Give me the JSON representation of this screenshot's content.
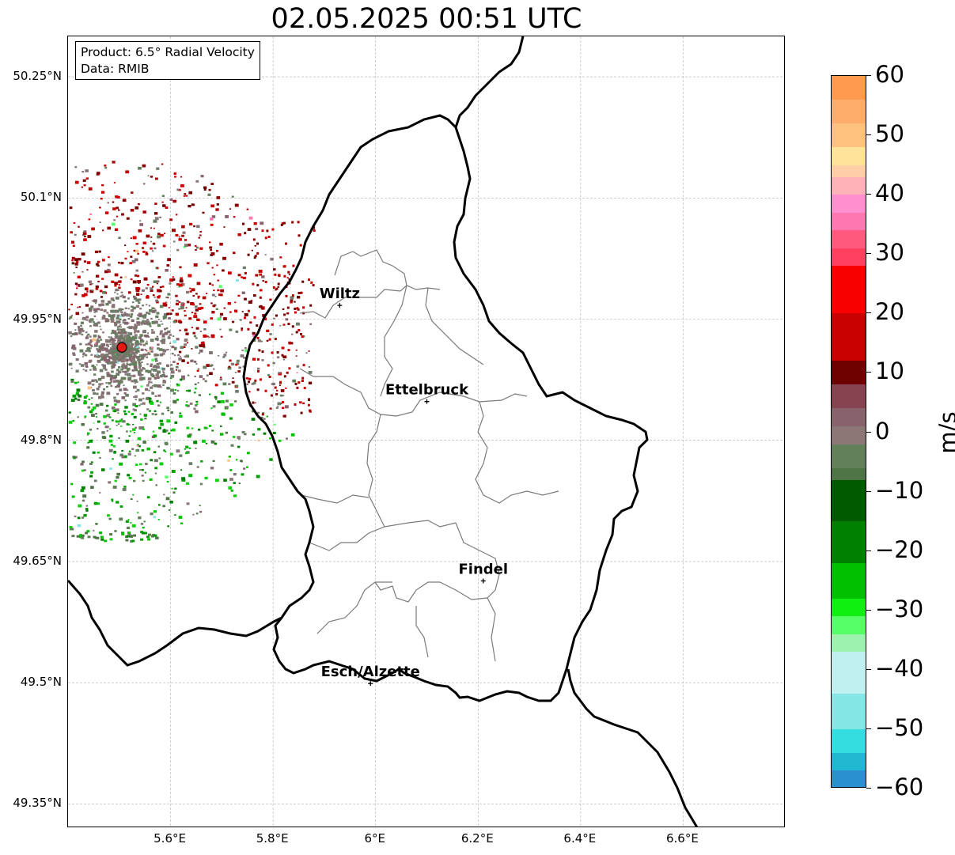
{
  "title": "02.05.2025 00:51 UTC",
  "info": {
    "product": "Product: 6.5° Radial Velocity",
    "data": "Data: RMIB"
  },
  "extent": {
    "lon_min": 5.4,
    "lon_max": 6.8,
    "lat_min": 49.32,
    "lat_max": 50.3
  },
  "ticks": {
    "lat": [
      {
        "value": 50.25,
        "label": "50.25°N"
      },
      {
        "value": 50.1,
        "label": "50.1°N"
      },
      {
        "value": 49.95,
        "label": "49.95°N"
      },
      {
        "value": 49.8,
        "label": "49.8°N"
      },
      {
        "value": 49.65,
        "label": "49.65°N"
      },
      {
        "value": 49.5,
        "label": "49.5°N"
      },
      {
        "value": 49.35,
        "label": "49.35°N"
      }
    ],
    "lon": [
      {
        "value": 5.6,
        "label": "5.6°E"
      },
      {
        "value": 5.8,
        "label": "5.8°E"
      },
      {
        "value": 6.0,
        "label": "6°E"
      },
      {
        "value": 6.2,
        "label": "6.2°E"
      },
      {
        "value": 6.4,
        "label": "6.4°E"
      },
      {
        "value": 6.6,
        "label": "6.6°E"
      }
    ]
  },
  "radar_site": {
    "lon": 5.505,
    "lat": 49.915,
    "color": "#e8170f"
  },
  "cities": [
    {
      "name": "Wiltz",
      "lon": 5.93,
      "lat": 49.967
    },
    {
      "name": "Ettelbruck",
      "lon": 6.1,
      "lat": 49.848
    },
    {
      "name": "Findel",
      "lon": 6.21,
      "lat": 49.626
    },
    {
      "name": "Esch/Alzette",
      "lon": 5.99,
      "lat": 49.499
    }
  ],
  "colorbar": {
    "unit": "m/s",
    "min": -60,
    "max": 60,
    "ticks": [
      {
        "value": 60,
        "label": "60"
      },
      {
        "value": 50,
        "label": "50"
      },
      {
        "value": 40,
        "label": "40"
      },
      {
        "value": 30,
        "label": "30"
      },
      {
        "value": 20,
        "label": "20"
      },
      {
        "value": 10,
        "label": "10"
      },
      {
        "value": 0,
        "label": "0"
      },
      {
        "value": -10,
        "label": "−10"
      },
      {
        "value": -20,
        "label": "−20"
      },
      {
        "value": -30,
        "label": "−30"
      },
      {
        "value": -40,
        "label": "−40"
      },
      {
        "value": -50,
        "label": "−50"
      },
      {
        "value": -60,
        "label": "−60"
      }
    ],
    "stops": [
      {
        "value": 60,
        "color": "#ff9a4f"
      },
      {
        "value": 56,
        "color": "#ffad6a"
      },
      {
        "value": 52,
        "color": "#ffc27e"
      },
      {
        "value": 48,
        "color": "#ffe39a"
      },
      {
        "value": 45,
        "color": "#ffd0a8"
      },
      {
        "value": 43,
        "color": "#ffb3b8"
      },
      {
        "value": 40,
        "color": "#ff8fcd"
      },
      {
        "value": 37,
        "color": "#ff77b0"
      },
      {
        "value": 34,
        "color": "#ff5a7e"
      },
      {
        "value": 31,
        "color": "#ff4060"
      },
      {
        "value": 28,
        "color": "#f80000"
      },
      {
        "value": 20,
        "color": "#c80000"
      },
      {
        "value": 12,
        "color": "#6e0000"
      },
      {
        "value": 8,
        "color": "#854450"
      },
      {
        "value": 4,
        "color": "#87636e"
      },
      {
        "value": 1,
        "color": "#8c7676"
      },
      {
        "value": -2,
        "color": "#62805a"
      },
      {
        "value": -6,
        "color": "#4f7547"
      },
      {
        "value": -8,
        "color": "#005a00"
      },
      {
        "value": -15,
        "color": "#008000"
      },
      {
        "value": -22,
        "color": "#00c000"
      },
      {
        "value": -28,
        "color": "#10f010"
      },
      {
        "value": -31,
        "color": "#55ff65"
      },
      {
        "value": -34,
        "color": "#9df2b0"
      },
      {
        "value": -37,
        "color": "#c0f0f0"
      },
      {
        "value": -44,
        "color": "#85e6e6"
      },
      {
        "value": -50,
        "color": "#33dde0"
      },
      {
        "value": -54,
        "color": "#20b8d0"
      },
      {
        "value": -57,
        "color": "#2a90d0"
      },
      {
        "value": -60,
        "color": "#1f78c0"
      }
    ]
  }
}
